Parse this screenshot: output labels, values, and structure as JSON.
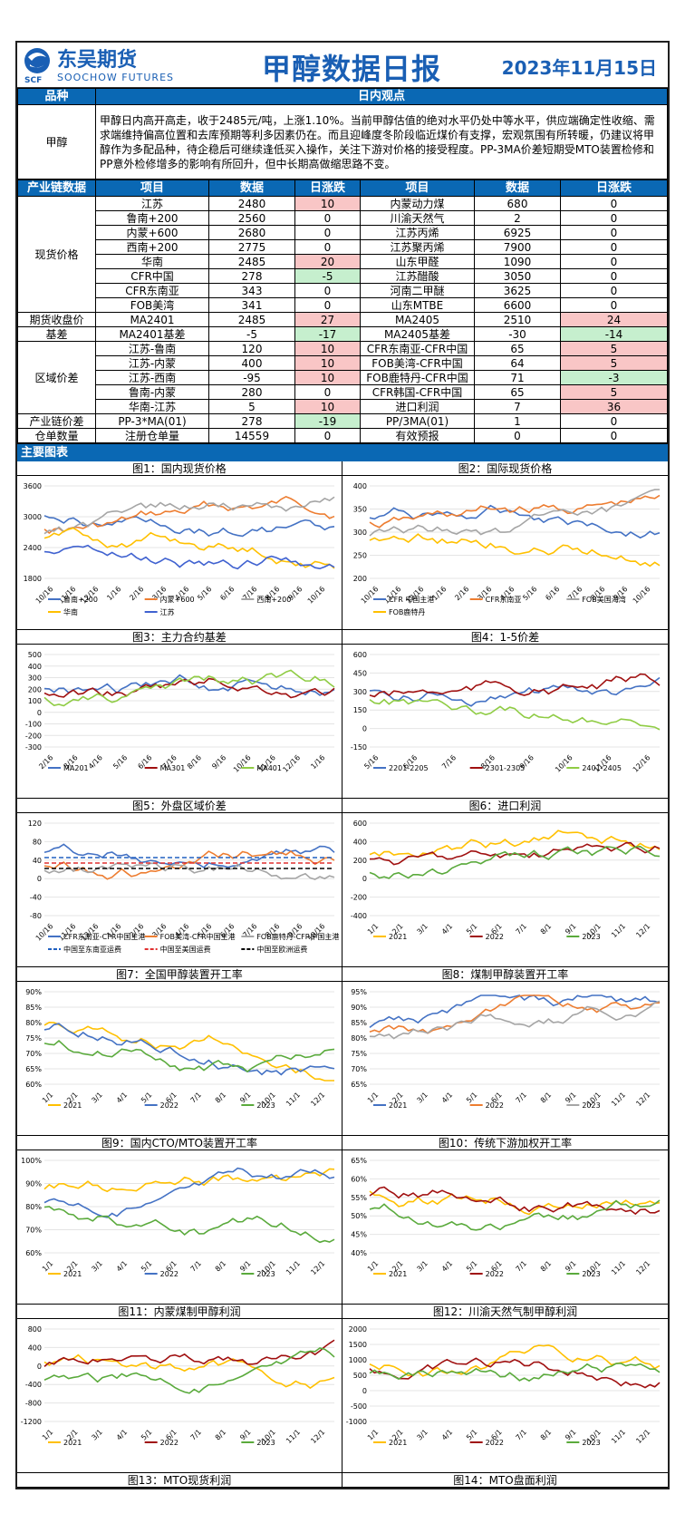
{
  "header": {
    "logo_cn": "东吴期货",
    "logo_en": "SOOCHOW FUTURES",
    "logo_mark": "SCF",
    "title": "甲醇数据日报",
    "date": "2023年11月15日"
  },
  "view": {
    "col1": "品种",
    "col2": "日内观点",
    "product": "甲醇",
    "text": "甲醇日内高开高走，收于2485元/吨，上涨1.10%。当前甲醇估值的绝对水平仍处中等水平，供应端确定性收缩、需求端维持偏高位置和去库预期等利多因素仍在。而且迎峰度冬阶段临近煤价有支撑，宏观氛围有所转暖，仍建议将甲醇作为多配品种，待企稳后可继续逢低买入操作，关注下游对价格的接受程度。PP-3MA价差短期受MTO装置检修和PP意外检修增多的影响有所回升，但中长期高做缩思路不变。"
  },
  "table": {
    "headers": [
      "产业链数据",
      "项目",
      "数据",
      "日涨跌",
      "项目",
      "数据",
      "日涨跌"
    ],
    "groups": [
      {
        "name": "现货价格",
        "rows": [
          [
            "江苏",
            "2480",
            "10",
            "内蒙动力煤",
            "680",
            "0"
          ],
          [
            "鲁南+200",
            "2560",
            "0",
            "川渝天然气",
            "2",
            "0"
          ],
          [
            "内蒙+600",
            "2680",
            "0",
            "江苏丙烯",
            "6925",
            "0"
          ],
          [
            "西南+200",
            "2775",
            "0",
            "江苏聚丙烯",
            "7900",
            "0"
          ],
          [
            "华南",
            "2485",
            "20",
            "山东甲醛",
            "1090",
            "0"
          ],
          [
            "CFR中国",
            "278",
            "-5",
            "江苏醋酸",
            "3050",
            "0"
          ],
          [
            "CFR东南亚",
            "343",
            "0",
            "河南二甲醚",
            "3625",
            "0"
          ],
          [
            "FOB美湾",
            "341",
            "0",
            "山东MTBE",
            "6600",
            "0"
          ]
        ]
      },
      {
        "name": "期货收盘价",
        "rows": [
          [
            "MA2401",
            "2485",
            "27",
            "MA2405",
            "2510",
            "24"
          ]
        ]
      },
      {
        "name": "基差",
        "rows": [
          [
            "MA2401基差",
            "-5",
            "-17",
            "MA2405基差",
            "-30",
            "-14"
          ]
        ]
      },
      {
        "name": "区域价差",
        "rows": [
          [
            "江苏-鲁南",
            "120",
            "10",
            "CFR东南亚-CFR中国",
            "65",
            "5"
          ],
          [
            "江苏-内蒙",
            "400",
            "10",
            "FOB美湾-CFR中国",
            "64",
            "5"
          ],
          [
            "江苏-西南",
            "-95",
            "10",
            "FOB鹿特丹-CFR中国",
            "71",
            "-3"
          ],
          [
            "鲁南-内蒙",
            "280",
            "0",
            "CFR韩国-CFR中国",
            "65",
            "5"
          ],
          [
            "华南-江苏",
            "5",
            "10",
            "进口利润",
            "7",
            "36"
          ]
        ]
      },
      {
        "name": "产业链价差",
        "rows": [
          [
            "PP-3*MA(01)",
            "278",
            "-19",
            "PP/3MA(01)",
            "1",
            "0"
          ]
        ]
      },
      {
        "name": "仓单数量",
        "rows": [
          [
            "注册仓单量",
            "14559",
            "0",
            "有效预报",
            "0",
            "0"
          ]
        ]
      }
    ]
  },
  "section": "主要图表",
  "charts": [
    {
      "title": "图1：国内现货价格",
      "yticks": [
        "3600",
        "3000",
        "2400",
        "1800"
      ],
      "xticks": [
        "10/16",
        "11/16",
        "12/16",
        "1/16",
        "2/16",
        "3/16",
        "4/16",
        "5/16",
        "6/16",
        "7/16",
        "8/16",
        "9/16",
        "10/16"
      ],
      "legend": [
        "鲁南+200",
        "内蒙+600",
        "西南+200",
        "华南",
        "江苏"
      ],
      "colors": [
        "#4472c4",
        "#ed7d31",
        "#a5a5a5",
        "#ffc000",
        "#4062d0"
      ]
    },
    {
      "title": "图2：国际现货价格",
      "yticks": [
        "400",
        "350",
        "300",
        "250",
        "200"
      ],
      "xticks": [
        "10/16",
        "11/16",
        "12/16",
        "1/16",
        "2/16",
        "3/16",
        "4/16",
        "5/16",
        "6/16",
        "7/16",
        "8/16",
        "9/16",
        "10/16"
      ],
      "legend": [
        "CFR 中国主港",
        "CFR东南亚",
        "FOB美国海湾",
        "FOB鹿特丹"
      ],
      "colors": [
        "#4472c4",
        "#ed7d31",
        "#a5a5a5",
        "#ffc000"
      ]
    },
    {
      "title": "图3：主力合约基差",
      "yticks": [
        "500",
        "400",
        "300",
        "200",
        "100",
        "0",
        "-100",
        "-200",
        "-300"
      ],
      "xticks": [
        "2/16",
        "3/16",
        "4/16",
        "5/16",
        "6/16",
        "7/16",
        "8/16",
        "9/16",
        "10/16",
        "11/16",
        "12/16",
        "1/16"
      ],
      "legend": [
        "MA201",
        "MA301",
        "MA401"
      ],
      "colors": [
        "#4472c4",
        "#a01010",
        "#8fcc44"
      ]
    },
    {
      "title": "图4：1-5价差",
      "yticks": [
        "600",
        "450",
        "300",
        "150",
        "0",
        "-150"
      ],
      "xticks": [
        "5/16",
        "6/16",
        "7/16",
        "8/16",
        "9/16",
        "10/16",
        "11/16",
        "12/16"
      ],
      "legend": [
        "2201-2205",
        "2301-2305",
        "2401-2405"
      ],
      "colors": [
        "#4472c4",
        "#a01010",
        "#8fcc44"
      ]
    },
    {
      "title": "图5：外盘区域价差",
      "yticks": [
        "120",
        "80",
        "40",
        "0",
        "-40",
        "-80"
      ],
      "xticks": [
        "10/16",
        "11/16",
        "12/16",
        "1/16",
        "2/16",
        "3/16",
        "4/16",
        "5/16",
        "6/16",
        "7/16",
        "8/16",
        "9/16",
        "10/16"
      ],
      "legend": [
        "CFR东南亚-CFR中国主港",
        "FOB美湾-CFR中国主港",
        "FOB鹿特丹-CFR中国主港",
        "中国至东南亚运费",
        "中国至美国运费",
        "中国至欧洲运费"
      ],
      "colors": [
        "#4472c4",
        "#ed7d31",
        "#a5a5a5",
        "#2060c0",
        "#e03030",
        "#000000"
      ]
    },
    {
      "title": "图6：进口利润",
      "yticks": [
        "600",
        "400",
        "200",
        "0",
        "-200",
        "-400"
      ],
      "xticks": [
        "1/1",
        "2/1",
        "3/1",
        "4/1",
        "5/1",
        "6/1",
        "7/1",
        "8/1",
        "9/1",
        "10/1",
        "11/1",
        "12/1"
      ],
      "legend": [
        "2021",
        "2022",
        "2023"
      ],
      "colors": [
        "#ffc000",
        "#a01010",
        "#5aaa3c"
      ]
    },
    {
      "title": "图7：全国甲醇装置开工率",
      "yticks": [
        "90%",
        "85%",
        "80%",
        "75%",
        "70%",
        "65%",
        "60%"
      ],
      "xticks": [
        "1/1",
        "2/1",
        "3/1",
        "4/1",
        "5/1",
        "6/1",
        "7/1",
        "8/1",
        "9/1",
        "10/1",
        "11/1",
        "12/1"
      ],
      "legend": [
        "2021",
        "2022",
        "2023"
      ],
      "colors": [
        "#ffc000",
        "#4472c4",
        "#5aaa3c"
      ]
    },
    {
      "title": "图8：煤制甲醇装置开工率",
      "yticks": [
        "95%",
        "90%",
        "85%",
        "80%",
        "75%",
        "70%",
        "65%"
      ],
      "xticks": [
        "1/1",
        "2/1",
        "3/1",
        "4/1",
        "5/1",
        "6/1",
        "7/1",
        "8/1",
        "9/1",
        "10/1",
        "11/1",
        "12/1"
      ],
      "legend": [
        "2021",
        "2022",
        "2023"
      ],
      "colors": [
        "#4472c4",
        "#ed7d31",
        "#a5a5a5"
      ]
    },
    {
      "title": "图9：国内CTO/MTO装置开工率",
      "yticks": [
        "100%",
        "90%",
        "80%",
        "70%",
        "60%"
      ],
      "xticks": [
        "1/1",
        "2/1",
        "3/1",
        "4/1",
        "5/1",
        "6/1",
        "7/1",
        "8/1",
        "9/1",
        "10/1",
        "11/1",
        "12/1"
      ],
      "legend": [
        "2021",
        "2022",
        "2023"
      ],
      "colors": [
        "#ffc000",
        "#4472c4",
        "#5aaa3c"
      ]
    },
    {
      "title": "图10：传统下游加权开工率",
      "yticks": [
        "65%",
        "60%",
        "55%",
        "50%",
        "45%",
        "40%"
      ],
      "xticks": [
        "1/1",
        "2/1",
        "3/1",
        "4/1",
        "5/1",
        "6/1",
        "7/1",
        "8/1",
        "9/1",
        "10/1",
        "11/1",
        "12/1"
      ],
      "legend": [
        "2021",
        "2022",
        "2023"
      ],
      "colors": [
        "#ffc000",
        "#a01010",
        "#5aaa3c"
      ]
    },
    {
      "title": "图11：内蒙煤制甲醇利润",
      "yticks": [
        "800",
        "400",
        "0",
        "-400",
        "-800",
        "-1200"
      ],
      "xticks": [
        "1/1",
        "2/1",
        "3/1",
        "4/1",
        "5/1",
        "6/1",
        "7/1",
        "8/1",
        "9/1",
        "10/1",
        "11/1",
        "12/1"
      ],
      "legend": [
        "2021",
        "2022",
        "2023"
      ],
      "colors": [
        "#ffc000",
        "#a01010",
        "#5aaa3c"
      ]
    },
    {
      "title": "图12：川渝天然气制甲醇利润",
      "yticks": [
        "2000",
        "1500",
        "1000",
        "500",
        "0",
        "-500",
        "-1000"
      ],
      "xticks": [
        "1/1",
        "2/1",
        "3/1",
        "4/1",
        "5/1",
        "6/1",
        "7/1",
        "8/1",
        "9/1",
        "10/1",
        "11/1",
        "12/1"
      ],
      "legend": [
        "2021",
        "2022",
        "2023"
      ],
      "colors": [
        "#ffc000",
        "#a01010",
        "#5aaa3c"
      ]
    }
  ],
  "footer": {
    "left": "图13：MTO现货利润",
    "right": "图14：MTO盘面利润"
  }
}
